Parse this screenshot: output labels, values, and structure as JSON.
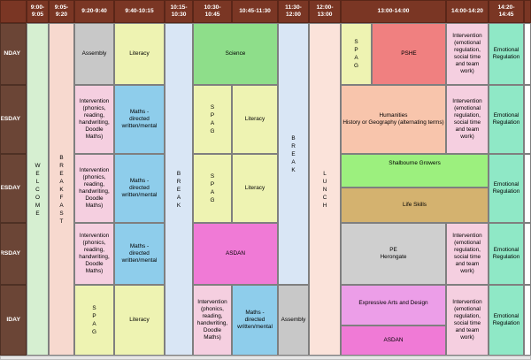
{
  "headers": [
    "9:00-\n9:05",
    "9:05-\n9:20",
    "9:20-9:40",
    "9:40-10:15",
    "10:15-\n10:30",
    "10:30-\n10:45",
    "10:45-11:30",
    "11:30-\n12:00",
    "12:00-\n13:00",
    "13:00-14:00",
    "14:00-14:20",
    "14:20-\n14:45"
  ],
  "days": [
    "NDAY",
    "ESDAY",
    "NESDAY",
    "RSDAY",
    "IDAY"
  ],
  "welcome": "W\nE\nL\nC\nO\nM\nE",
  "breakfast": "B\nR\nE\nA\nK\nF\nA\nS\nT",
  "break": "B\nR\nE\nA\nK",
  "lunch": "L\nU\nN\nC\nH",
  "spag": "S\nP\nA\nG",
  "assembly": "Assembly",
  "literacy": "Literacy",
  "science": "Science",
  "pshe": "PSHE",
  "intervention_emotional": "Intervention\n(emotional\nregulation,\nsocial time\nand team\nwork)",
  "emotional_regulation": "Emotional\nRegulation",
  "intervention_phonics": "Intervention\n(phonics,\nreading,\nhandwriting,\nDoodle\nMaths)",
  "maths": "Maths -\ndirected\nwritten/mental",
  "humanities": "Humanities\nHistory or Geography (alternating terms)",
  "shalbourne": "Shalbourne Growers",
  "life_skills": "Life Skills",
  "asdan": "ASDAN",
  "pe": "PE\nHerongate",
  "expressive": "Expressive Arts and Design",
  "colors": {
    "header": "#7a3624",
    "day": "#6b4536",
    "welcome": "#d6efd1",
    "breakfast": "#f7d9cf",
    "assembly": "#c8c8c8",
    "literacy": "#eef3b2",
    "science": "#8ede8a",
    "pshe": "#f08080",
    "intervention": "#f5cfe0",
    "emotional": "#8fe8c6",
    "maths": "#8ecdeb",
    "break": "#d9e6f5",
    "lunch": "#fbe3da",
    "humanities": "#f8c5ac",
    "growers": "#9cf07e",
    "lifeskills": "#d4b26f",
    "asdan": "#f07ad6",
    "pe": "#cfcfcf",
    "expressive": "#ec9ee8"
  }
}
